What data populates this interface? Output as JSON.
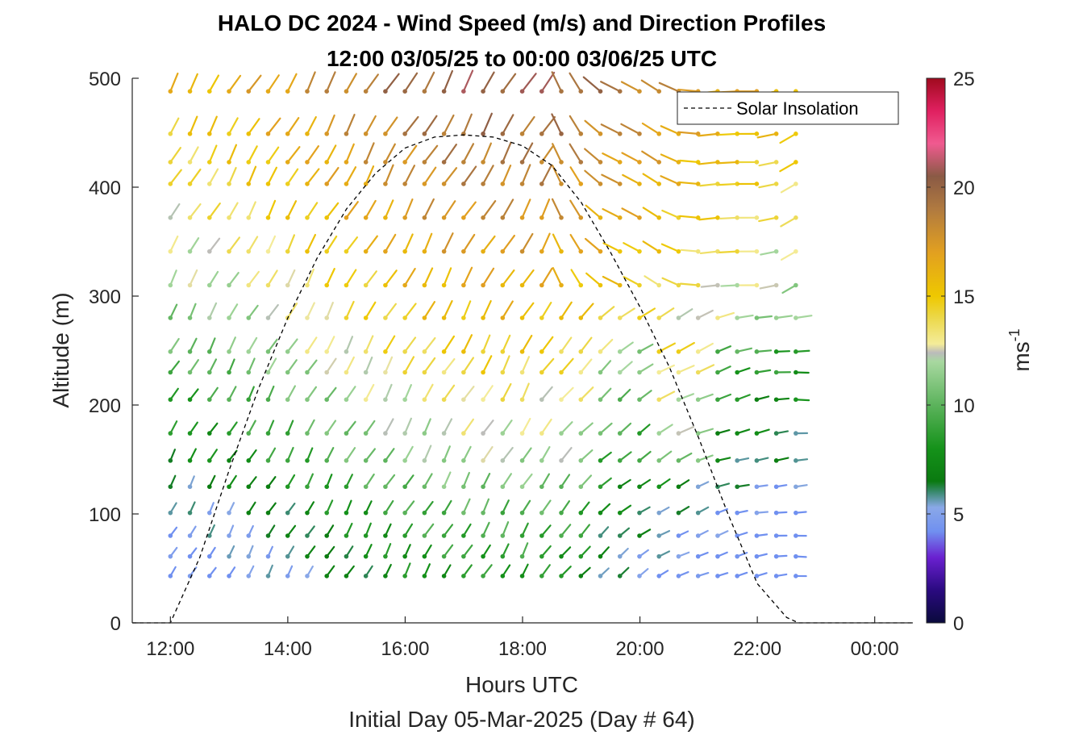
{
  "chart_data": {
    "type": "wind-barb-profile",
    "title": [
      "HALO DC 2024 - Wind Speed (m/s) and Direction Profiles",
      "12:00 03/05/25 to 00:00 03/06/25  UTC"
    ],
    "xlabel": "Hours UTC",
    "xlabel2": "Initial Day 05-Mar-2025 (Day # 64)",
    "ylabel": "Altitude (m)",
    "xlim_hours": [
      11.35,
      24.65
    ],
    "ylim": [
      0,
      500
    ],
    "x_ticks_hours": [
      12,
      14,
      16,
      18,
      20,
      22,
      24
    ],
    "x_tick_labels": [
      "12:00",
      "14:00",
      "16:00",
      "18:00",
      "20:00",
      "22:00",
      "00:00"
    ],
    "y_ticks": [
      0,
      100,
      200,
      300,
      400,
      500
    ],
    "colorbar": {
      "label": "ms",
      "label_sup": "-1",
      "range": [
        0,
        25
      ],
      "ticks": [
        0,
        5,
        10,
        15,
        20,
        25
      ]
    },
    "legend": {
      "entries": [
        "Solar Insolation"
      ],
      "position": "top-right"
    },
    "barb_times_start_hour": 12.0,
    "barb_time_step_hours": 0.333,
    "barb_time_count": 33,
    "barb_altitudes": [
      43,
      61,
      80,
      101,
      125,
      149,
      174,
      205,
      230,
      249,
      280,
      310,
      341,
      372,
      403,
      423,
      449,
      488
    ],
    "solar_insolation": {
      "peak_altitude": 448,
      "times_hours": [
        11.35,
        12.0,
        12.5,
        13.0,
        13.5,
        14.0,
        14.5,
        15.0,
        15.5,
        16.0,
        16.5,
        17.0,
        17.5,
        18.0,
        18.5,
        19.0,
        19.5,
        20.0,
        20.5,
        21.0,
        21.5,
        22.0,
        22.5,
        22.7,
        24.65
      ],
      "values": [
        0,
        0,
        60,
        140,
        215,
        280,
        335,
        380,
        413,
        436,
        446,
        448,
        446,
        438,
        420,
        386,
        340,
        290,
        235,
        170,
        100,
        36,
        5,
        0,
        0
      ]
    },
    "wind_profile_summary": [
      {
        "altitude": 43,
        "speed_ms": 6.0
      },
      {
        "altitude": 101,
        "speed_ms": 7.5
      },
      {
        "altitude": 149,
        "speed_ms": 9.5
      },
      {
        "altitude": 205,
        "speed_ms": 11.0
      },
      {
        "altitude": 249,
        "speed_ms": 12.5
      },
      {
        "altitude": 310,
        "speed_ms": 14.0
      },
      {
        "altitude": 372,
        "speed_ms": 15.5
      },
      {
        "altitude": 423,
        "speed_ms": 16.5
      },
      {
        "altitude": 488,
        "speed_ms": 18.0
      }
    ]
  }
}
